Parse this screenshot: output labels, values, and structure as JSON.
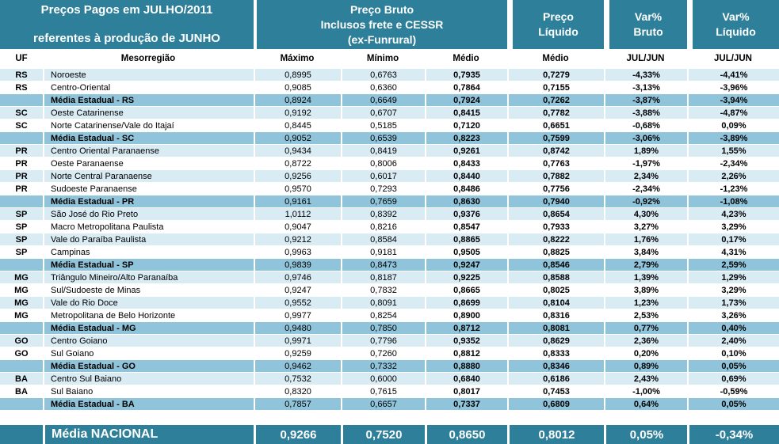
{
  "title_block": {
    "line1": "Preços Pagos em JULHO/2011",
    "line2": "referentes à produção de JUNHO"
  },
  "price_gross_block": {
    "line1": "Preço Bruto",
    "line2": "Inclusos frete e CESSR",
    "line3": "(ex-Funrural)"
  },
  "price_net_block": {
    "line1": "Preço",
    "line2": "Líquido"
  },
  "var_gross_block": {
    "line1": "Var%",
    "line2": "Bruto"
  },
  "var_net_block": {
    "line1": "Var%",
    "line2": "Líquido"
  },
  "columns": {
    "uf": "UF",
    "mesorregiao": "Mesorregião",
    "maximo": "Máximo",
    "minimo": "Mínimo",
    "medio_bruto": "Médio",
    "medio_liquido": "Médio",
    "var_bruto": "JUL/JUN",
    "var_liquido": "JUL/JUN"
  },
  "rows": [
    {
      "type": "region",
      "uf": "RS",
      "mesorregiao": "Noroeste",
      "maximo": "0,8995",
      "minimo": "0,6763",
      "medio_bruto": "0,7935",
      "medio_liquido": "0,7279",
      "var_bruto": "-4,33%",
      "var_liquido": "-4,41%"
    },
    {
      "type": "region",
      "uf": "RS",
      "mesorregiao": "Centro-Oriental",
      "maximo": "0,9085",
      "minimo": "0,6360",
      "medio_bruto": "0,7864",
      "medio_liquido": "0,7155",
      "var_bruto": "-3,13%",
      "var_liquido": "-3,96%"
    },
    {
      "type": "state_average",
      "uf": "",
      "mesorregiao": "Média Estadual - RS",
      "maximo": "0,8924",
      "minimo": "0,6649",
      "medio_bruto": "0,7924",
      "medio_liquido": "0,7262",
      "var_bruto": "-3,87%",
      "var_liquido": "-3,94%"
    },
    {
      "type": "region",
      "uf": "SC",
      "mesorregiao": "Oeste Catarinense",
      "maximo": "0,9192",
      "minimo": "0,6707",
      "medio_bruto": "0,8415",
      "medio_liquido": "0,7782",
      "var_bruto": "-3,88%",
      "var_liquido": "-4,87%"
    },
    {
      "type": "region",
      "uf": "SC",
      "mesorregiao": "Norte Catarinense/Vale do Itajaí",
      "maximo": "0,8445",
      "minimo": "0,5185",
      "medio_bruto": "0,7120",
      "medio_liquido": "0,6651",
      "var_bruto": "-0,68%",
      "var_liquido": "0,09%"
    },
    {
      "type": "state_average",
      "uf": "",
      "mesorregiao": "Média Estadual - SC",
      "maximo": "0,9052",
      "minimo": "0,6539",
      "medio_bruto": "0,8223",
      "medio_liquido": "0,7599",
      "var_bruto": "-3,06%",
      "var_liquido": "-3,89%"
    },
    {
      "type": "region",
      "uf": "PR",
      "mesorregiao": "Centro Oriental Paranaense",
      "maximo": "0,9434",
      "minimo": "0,8419",
      "medio_bruto": "0,9261",
      "medio_liquido": "0,8742",
      "var_bruto": "1,89%",
      "var_liquido": "1,55%"
    },
    {
      "type": "region",
      "uf": "PR",
      "mesorregiao": "Oeste Paranaense",
      "maximo": "0,8722",
      "minimo": "0,8006",
      "medio_bruto": "0,8433",
      "medio_liquido": "0,7763",
      "var_bruto": "-1,97%",
      "var_liquido": "-2,34%"
    },
    {
      "type": "region",
      "uf": "PR",
      "mesorregiao": "Norte Central Paranaense",
      "maximo": "0,9256",
      "minimo": "0,6017",
      "medio_bruto": "0,8440",
      "medio_liquido": "0,7882",
      "var_bruto": "2,34%",
      "var_liquido": "2,26%"
    },
    {
      "type": "region",
      "uf": "PR",
      "mesorregiao": "Sudoeste Paranaense",
      "maximo": "0,9570",
      "minimo": "0,7293",
      "medio_bruto": "0,8486",
      "medio_liquido": "0,7756",
      "var_bruto": "-2,34%",
      "var_liquido": "-1,23%"
    },
    {
      "type": "state_average",
      "uf": "",
      "mesorregiao": "Média Estadual - PR",
      "maximo": "0,9161",
      "minimo": "0,7659",
      "medio_bruto": "0,8630",
      "medio_liquido": "0,7940",
      "var_bruto": "-0,92%",
      "var_liquido": "-1,08%"
    },
    {
      "type": "region",
      "uf": "SP",
      "mesorregiao": "São José do Rio Preto",
      "maximo": "1,0112",
      "minimo": "0,8392",
      "medio_bruto": "0,9376",
      "medio_liquido": "0,8654",
      "var_bruto": "4,30%",
      "var_liquido": "4,23%"
    },
    {
      "type": "region",
      "uf": "SP",
      "mesorregiao": "Macro Metropolitana Paulista",
      "maximo": "0,9047",
      "minimo": "0,8216",
      "medio_bruto": "0,8547",
      "medio_liquido": "0,7933",
      "var_bruto": "3,27%",
      "var_liquido": "3,29%"
    },
    {
      "type": "region",
      "uf": "SP",
      "mesorregiao": "Vale do Paraíba Paulista",
      "maximo": "0,9212",
      "minimo": "0,8584",
      "medio_bruto": "0,8865",
      "medio_liquido": "0,8222",
      "var_bruto": "1,76%",
      "var_liquido": "0,17%"
    },
    {
      "type": "region",
      "uf": "SP",
      "mesorregiao": "Campinas",
      "maximo": "0,9963",
      "minimo": "0,9181",
      "medio_bruto": "0,9505",
      "medio_liquido": "0,8825",
      "var_bruto": "3,84%",
      "var_liquido": "4,31%"
    },
    {
      "type": "state_average",
      "uf": "",
      "mesorregiao": "Média Estadual - SP",
      "maximo": "0,9839",
      "minimo": "0,8473",
      "medio_bruto": "0,9247",
      "medio_liquido": "0,8546",
      "var_bruto": "2,79%",
      "var_liquido": "2,59%"
    },
    {
      "type": "region",
      "uf": "MG",
      "mesorregiao": "Triângulo Mineiro/Alto Paranaíba",
      "maximo": "0,9746",
      "minimo": "0,8187",
      "medio_bruto": "0,9225",
      "medio_liquido": "0,8588",
      "var_bruto": "1,39%",
      "var_liquido": "1,29%"
    },
    {
      "type": "region",
      "uf": "MG",
      "mesorregiao": "Sul/Sudoeste de Minas",
      "maximo": "0,9247",
      "minimo": "0,7832",
      "medio_bruto": "0,8665",
      "medio_liquido": "0,8025",
      "var_bruto": "3,89%",
      "var_liquido": "3,29%"
    },
    {
      "type": "region",
      "uf": "MG",
      "mesorregiao": "Vale do Rio Doce",
      "maximo": "0,9552",
      "minimo": "0,8091",
      "medio_bruto": "0,8699",
      "medio_liquido": "0,8104",
      "var_bruto": "1,23%",
      "var_liquido": "1,73%"
    },
    {
      "type": "region",
      "uf": "MG",
      "mesorregiao": "Metropolitana de Belo Horizonte",
      "maximo": "0,9977",
      "minimo": "0,8254",
      "medio_bruto": "0,8900",
      "medio_liquido": "0,8316",
      "var_bruto": "2,53%",
      "var_liquido": "3,26%"
    },
    {
      "type": "state_average",
      "uf": "",
      "mesorregiao": "Média Estadual - MG",
      "maximo": "0,9480",
      "minimo": "0,7850",
      "medio_bruto": "0,8712",
      "medio_liquido": "0,8081",
      "var_bruto": "0,77%",
      "var_liquido": "0,40%"
    },
    {
      "type": "region",
      "uf": "GO",
      "mesorregiao": "Centro Goiano",
      "maximo": "0,9971",
      "minimo": "0,7796",
      "medio_bruto": "0,9352",
      "medio_liquido": "0,8629",
      "var_bruto": "2,36%",
      "var_liquido": "2,40%"
    },
    {
      "type": "region",
      "uf": "GO",
      "mesorregiao": "Sul Goiano",
      "maximo": "0,9259",
      "minimo": "0,7260",
      "medio_bruto": "0,8812",
      "medio_liquido": "0,8333",
      "var_bruto": "0,20%",
      "var_liquido": "0,10%"
    },
    {
      "type": "state_average",
      "uf": "",
      "mesorregiao": "Média Estadual - GO",
      "maximo": "0,9462",
      "minimo": "0,7332",
      "medio_bruto": "0,8880",
      "medio_liquido": "0,8346",
      "var_bruto": "0,89%",
      "var_liquido": "0,05%"
    },
    {
      "type": "region",
      "uf": "BA",
      "mesorregiao": "Centro Sul Baiano",
      "maximo": "0,7532",
      "minimo": "0,6000",
      "medio_bruto": "0,6840",
      "medio_liquido": "0,6186",
      "var_bruto": "2,43%",
      "var_liquido": "0,69%"
    },
    {
      "type": "region",
      "uf": "BA",
      "mesorregiao": "Sul Baiano",
      "maximo": "0,8320",
      "minimo": "0,7615",
      "medio_bruto": "0,8017",
      "medio_liquido": "0,7453",
      "var_bruto": "-1,00%",
      "var_liquido": "-0,59%"
    },
    {
      "type": "state_average",
      "uf": "",
      "mesorregiao": "Média Estadual - BA",
      "maximo": "0,7857",
      "minimo": "0,6657",
      "medio_bruto": "0,7337",
      "medio_liquido": "0,6809",
      "var_bruto": "0,64%",
      "var_liquido": "0,05%"
    }
  ],
  "national": {
    "uf": "",
    "label": "Média NACIONAL",
    "maximo": "0,9266",
    "minimo": "0,7520",
    "medio_bruto": "0,8650",
    "medio_liquido": "0,8012",
    "var_bruto": "0,05%",
    "var_liquido": "-0,34%"
  },
  "colors": {
    "teal": "#2E7F99",
    "row_light": "#D9EBF3",
    "row_white": "#FFFFFF",
    "row_state_average": "#8FC4DA"
  }
}
